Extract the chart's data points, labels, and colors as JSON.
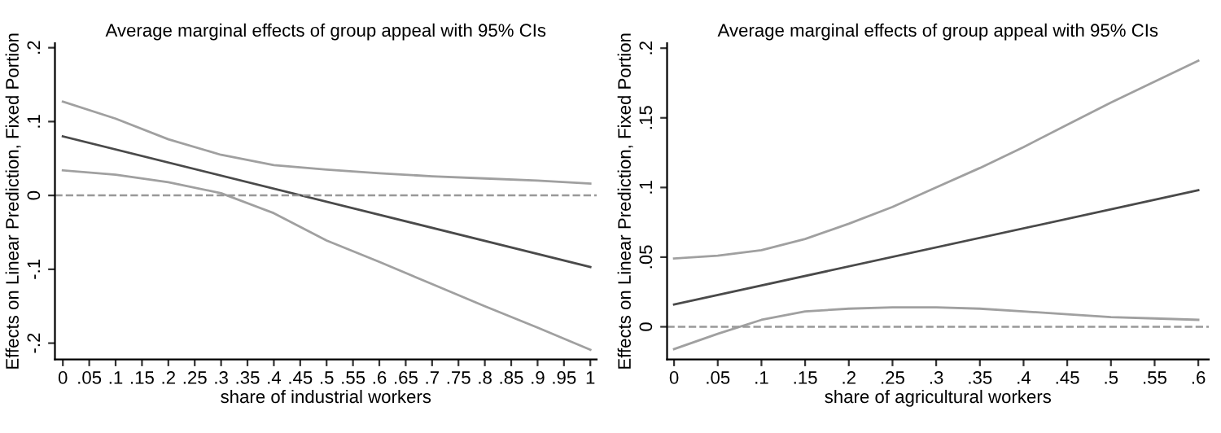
{
  "chart_data": [
    {
      "type": "line",
      "title": "Average marginal effects of group appeal with 95% CIs",
      "xlabel": "share of industrial workers",
      "ylabel": "Effects on Linear Prediction, Fixed Portion",
      "series": [
        {
          "color": "#4a4a4a",
          "x": [
            0,
            1
          ],
          "values": [
            0.08,
            -0.097
          ]
        },
        {
          "color": "#a0a0a0",
          "x": [
            0,
            0.1,
            0.2,
            0.3,
            0.4,
            0.5,
            0.6,
            0.7,
            0.8,
            0.9,
            1
          ],
          "values": [
            0.127,
            0.104,
            0.076,
            0.055,
            0.041,
            0.035,
            0.03,
            0.026,
            0.023,
            0.02,
            0.016
          ]
        },
        {
          "color": "#a0a0a0",
          "x": [
            0,
            0.1,
            0.2,
            0.3,
            0.4,
            0.5,
            0.6,
            0.7,
            0.8,
            0.9,
            1
          ],
          "values": [
            0.034,
            0.028,
            0.018,
            0.003,
            -0.024,
            -0.061,
            -0.09,
            -0.12,
            -0.15,
            -0.179,
            -0.209
          ]
        }
      ],
      "xlim": [
        -0.015,
        1.012
      ],
      "ylim": [
        -0.222,
        0.206
      ],
      "xticks": [
        0,
        {
          "value": 0.05,
          "label": ".05"
        },
        {
          "value": 0.1,
          "label": ".1"
        },
        {
          "value": 0.15,
          "label": ".15"
        },
        {
          "value": 0.2,
          "label": ".2"
        },
        {
          "value": 0.25,
          "label": ".25"
        },
        {
          "value": 0.3,
          "label": ".3"
        },
        {
          "value": 0.35,
          "label": ".35"
        },
        {
          "value": 0.4,
          "label": ".4"
        },
        {
          "value": 0.45,
          "label": ".45"
        },
        {
          "value": 0.5,
          "label": ".5"
        },
        {
          "value": 0.55,
          "label": ".55"
        },
        {
          "value": 0.6,
          "label": ".6"
        },
        {
          "value": 0.65,
          "label": ".65"
        },
        {
          "value": 0.7,
          "label": ".7"
        },
        {
          "value": 0.75,
          "label": ".75"
        },
        {
          "value": 0.8,
          "label": ".8"
        },
        {
          "value": 0.85,
          "label": ".85"
        },
        {
          "value": 0.9,
          "label": ".9"
        },
        {
          "value": 0.95,
          "label": ".95"
        },
        1
      ],
      "yticks": [
        {
          "value": -0.2,
          "label": "-.2"
        },
        {
          "value": -0.1,
          "label": "-.1"
        },
        0,
        {
          "value": 0.1,
          "label": ".1"
        },
        {
          "value": 0.2,
          "label": ".2"
        }
      ],
      "ref_lines": [
        {
          "axis": "y",
          "value": 0,
          "color": "#999999",
          "line_style": "dashed"
        }
      ],
      "grid": false,
      "legend": false,
      "line_style": "solid",
      "marker": "none"
    },
    {
      "type": "line",
      "title": "Average marginal effects of group appeal with 95% CIs",
      "xlabel": "share of agricultural workers",
      "ylabel": "Effects on Linear Prediction, Fixed Portion",
      "series": [
        {
          "color": "#4a4a4a",
          "x": [
            0,
            0.6
          ],
          "values": [
            0.016,
            0.098
          ]
        },
        {
          "color": "#a0a0a0",
          "x": [
            0,
            0.05,
            0.1,
            0.15,
            0.2,
            0.25,
            0.3,
            0.35,
            0.4,
            0.45,
            0.5,
            0.55,
            0.6
          ],
          "values": [
            0.049,
            0.051,
            0.055,
            0.063,
            0.074,
            0.086,
            0.1,
            0.114,
            0.129,
            0.145,
            0.161,
            0.176,
            0.191
          ]
        },
        {
          "color": "#a0a0a0",
          "x": [
            0,
            0.05,
            0.1,
            0.15,
            0.2,
            0.25,
            0.3,
            0.35,
            0.4,
            0.45,
            0.5,
            0.55,
            0.6
          ],
          "values": [
            -0.016,
            -0.005,
            0.005,
            0.011,
            0.013,
            0.014,
            0.014,
            0.013,
            0.011,
            0.009,
            0.007,
            0.006,
            0.005
          ]
        }
      ],
      "xlim": [
        -0.008,
        0.612
      ],
      "ylim": [
        -0.0234,
        0.2035
      ],
      "xticks": [
        0,
        {
          "value": 0.05,
          "label": ".05"
        },
        {
          "value": 0.1,
          "label": ".1"
        },
        {
          "value": 0.15,
          "label": ".15"
        },
        {
          "value": 0.2,
          "label": ".2"
        },
        {
          "value": 0.25,
          "label": ".25"
        },
        {
          "value": 0.3,
          "label": ".3"
        },
        {
          "value": 0.35,
          "label": ".35"
        },
        {
          "value": 0.4,
          "label": ".4"
        },
        {
          "value": 0.45,
          "label": ".45"
        },
        {
          "value": 0.5,
          "label": ".5"
        },
        {
          "value": 0.55,
          "label": ".55"
        },
        {
          "value": 0.6,
          "label": ".6"
        }
      ],
      "yticks": [
        0,
        {
          "value": 0.05,
          "label": ".05"
        },
        {
          "value": 0.1,
          "label": ".1"
        },
        {
          "value": 0.15,
          "label": ".15"
        },
        {
          "value": 0.2,
          "label": ".2"
        }
      ],
      "ref_lines": [
        {
          "axis": "y",
          "value": 0,
          "color": "#999999",
          "line_style": "dashed"
        }
      ],
      "grid": false,
      "legend": false,
      "line_style": "solid",
      "marker": "none"
    }
  ]
}
